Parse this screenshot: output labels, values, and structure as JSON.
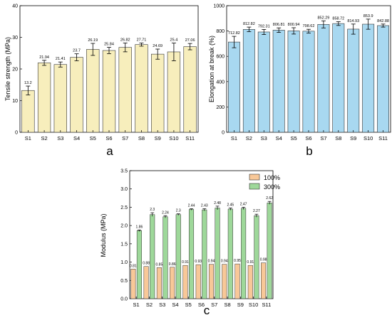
{
  "colors": {
    "tensile_bar": "#f7eebc",
    "elongation_bar": "#a8d8f0",
    "mod100_bar": "#f8c898",
    "mod300_bar": "#9ed89a",
    "error_bar": "#000000"
  },
  "chart_data": [
    {
      "type": "bar",
      "panel_label": "a",
      "categories": [
        "S1",
        "S2",
        "S3",
        "S4",
        "S5",
        "S6",
        "S7",
        "S8",
        "S9",
        "S10",
        "S11"
      ],
      "values": [
        13.2,
        21.94,
        21.41,
        23.7,
        26.19,
        25.84,
        26.82,
        27.71,
        24.69,
        25.4,
        27.06
      ],
      "value_labels": [
        "13.2",
        "21.94",
        "21.41",
        "23.7",
        "26.19",
        "25.84",
        "26.82",
        "27.71",
        "24.69",
        "25.4",
        "27.06"
      ],
      "errors": [
        1.4,
        0.8,
        0.8,
        1.1,
        1.9,
        1.0,
        1.4,
        0.5,
        1.6,
        2.8,
        1.0
      ],
      "ylabel": "Tensile strength (MPa)",
      "ylim": [
        0,
        40
      ],
      "yticks": [
        "0",
        "10",
        "20",
        "30",
        "40"
      ]
    },
    {
      "type": "bar",
      "panel_label": "b",
      "categories": [
        "S1",
        "S2",
        "S3",
        "S4",
        "S5",
        "S6",
        "S7",
        "S8",
        "S9",
        "S10",
        "S11"
      ],
      "values": [
        712.82,
        812.82,
        792.31,
        806.81,
        800.94,
        798.62,
        852.29,
        858.72,
        814.93,
        853.9,
        842.88
      ],
      "value_labels": [
        "712.82",
        "812.82",
        "792.31",
        "806.81",
        "800.94",
        "798.62",
        "852.29",
        "858.72",
        "814.93",
        "853.9",
        "842.88"
      ],
      "errors": [
        45,
        18,
        20,
        18,
        25,
        15,
        28,
        15,
        40,
        40,
        12
      ],
      "ylabel": "Elongation at break (%)",
      "ylim": [
        0,
        1000
      ],
      "yticks": [
        "0",
        "200",
        "400",
        "600",
        "800",
        "1000"
      ]
    },
    {
      "type": "bar",
      "panel_label": "c",
      "categories": [
        "S1",
        "S2",
        "S3",
        "S4",
        "S5",
        "S6",
        "S7",
        "S8",
        "S9",
        "S10",
        "S11"
      ],
      "series": [
        {
          "name": "100%",
          "values": [
            0.81,
            0.88,
            0.85,
            0.86,
            0.91,
            0.93,
            0.94,
            0.94,
            0.95,
            0.91,
            0.98
          ],
          "value_labels": [
            "0.81",
            "0.88",
            "0.85",
            "0.86",
            "0.91",
            "0.93",
            "0.94",
            "0.94",
            "0.95",
            "0.91",
            "0.98"
          ]
        },
        {
          "name": "300%",
          "values": [
            1.86,
            2.3,
            2.24,
            2.3,
            2.44,
            2.43,
            2.48,
            2.45,
            2.47,
            2.27,
            2.62
          ],
          "value_labels": [
            "1.86",
            "2.3",
            "2.24",
            "2.3",
            "2.44",
            "2.43",
            "2.48",
            "2.45",
            "2.47",
            "2.27",
            "2.62"
          ],
          "errors": [
            0.02,
            0.05,
            0.03,
            0.02,
            0.02,
            0.03,
            0.05,
            0.03,
            0.03,
            0.04,
            0.04
          ]
        }
      ],
      "ylabel": "Modulus (MPa)",
      "ylim": [
        0,
        3.5
      ],
      "yticks": [
        "0.0",
        "0.5",
        "1.0",
        "1.5",
        "2.0",
        "2.5",
        "3.0",
        "3.5"
      ],
      "legend_position": "top-right"
    }
  ]
}
